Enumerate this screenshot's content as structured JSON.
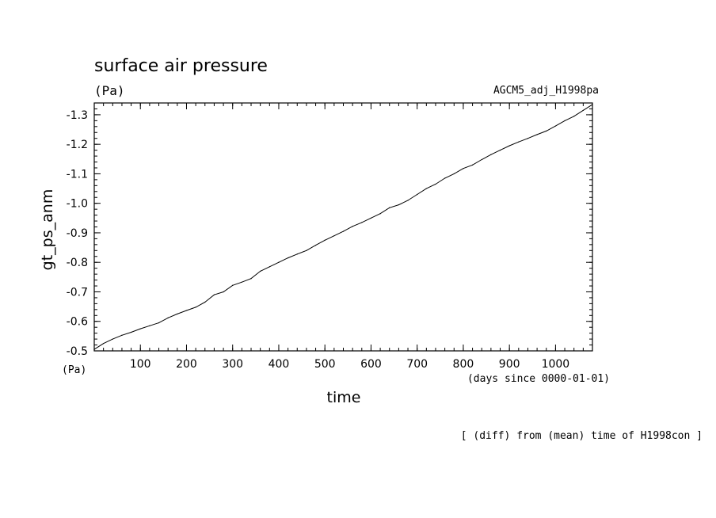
{
  "chart_data": {
    "type": "line",
    "title": "surface air pressure",
    "units": "(Pa)",
    "run_label": "AGCM5_adj_H1998pa",
    "xlabel": "time",
    "xunits": "(days since 0000-01-01)",
    "ylabel": "gt_ps_anm",
    "yunits": "(Pa)",
    "footnote": "[ (diff) from (mean) time of H1998con ]",
    "xlim": [
      0,
      1080
    ],
    "ylim": [
      -0.5,
      -1.34
    ],
    "y_reversed": true,
    "xticks": [
      100,
      200,
      300,
      400,
      500,
      600,
      700,
      800,
      900,
      1000
    ],
    "xtick_labels": [
      "100",
      "200",
      "300",
      "400",
      "500",
      "600",
      "700",
      "800",
      "900",
      "1000"
    ],
    "yticks": [
      -0.5,
      -0.6,
      -0.7,
      -0.8,
      -0.9,
      -1.0,
      -1.1,
      -1.2,
      -1.3
    ],
    "ytick_labels": [
      "-0.5",
      "-0.6",
      "-0.7",
      "-0.8",
      "-0.9",
      "-1.0",
      "-1.1",
      "-1.2",
      "-1.3"
    ],
    "grid": false,
    "series": [
      {
        "color": "#000000",
        "x": [
          0,
          20,
          40,
          60,
          80,
          100,
          120,
          140,
          160,
          180,
          200,
          220,
          240,
          260,
          280,
          300,
          320,
          340,
          360,
          380,
          400,
          420,
          440,
          460,
          480,
          500,
          520,
          540,
          560,
          580,
          600,
          620,
          640,
          660,
          680,
          700,
          720,
          740,
          760,
          780,
          800,
          820,
          840,
          860,
          880,
          900,
          920,
          940,
          960,
          980,
          1000,
          1020,
          1040,
          1060,
          1080
        ],
        "y": [
          -0.505,
          -0.525,
          -0.54,
          -0.553,
          -0.563,
          -0.575,
          -0.585,
          -0.595,
          -0.612,
          -0.625,
          -0.637,
          -0.648,
          -0.665,
          -0.69,
          -0.7,
          -0.722,
          -0.733,
          -0.745,
          -0.77,
          -0.785,
          -0.8,
          -0.815,
          -0.828,
          -0.84,
          -0.858,
          -0.875,
          -0.89,
          -0.905,
          -0.922,
          -0.935,
          -0.95,
          -0.965,
          -0.985,
          -0.995,
          -1.01,
          -1.03,
          -1.05,
          -1.065,
          -1.085,
          -1.1,
          -1.118,
          -1.13,
          -1.148,
          -1.165,
          -1.18,
          -1.195,
          -1.208,
          -1.22,
          -1.233,
          -1.245,
          -1.262,
          -1.28,
          -1.295,
          -1.315,
          -1.335
        ]
      }
    ]
  }
}
